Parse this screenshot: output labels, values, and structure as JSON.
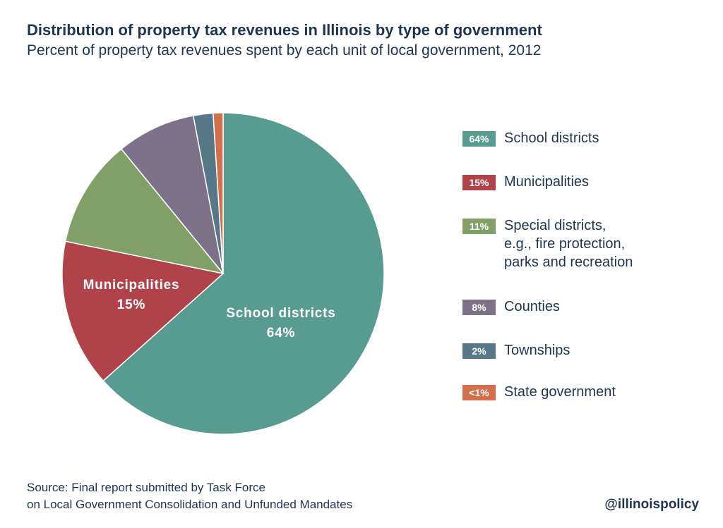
{
  "title": "Distribution of property tax revenues in Illinois by type of government",
  "subtitle": "Percent of property tax revenues spent by each unit of local government, 2012",
  "chart_data": {
    "type": "pie",
    "title": "Distribution of property tax revenues in Illinois by type of government",
    "subtitle": "Percent of property tax revenues spent by each unit of local government, 2012",
    "legend_position": "right",
    "start": "top, clockwise",
    "slices": [
      {
        "name": "School districts",
        "value": 64,
        "value_label": "64%",
        "color": "#589b90",
        "in_pie_label": "School districts"
      },
      {
        "name": "Municipalities",
        "value": 15,
        "value_label": "15%",
        "color": "#b0434a",
        "in_pie_label": "Municipalities"
      },
      {
        "name": "Special districts,\ne.g., fire protection,\nparks and recreation",
        "value": 11,
        "value_label": "11%",
        "color": "#80a068"
      },
      {
        "name": "Counties",
        "value": 8,
        "value_label": "8%",
        "color": "#7d7289"
      },
      {
        "name": "Townships",
        "value": 2,
        "value_label": "2%",
        "color": "#577888"
      },
      {
        "name": "State government",
        "value": 1,
        "value_label": "<1%",
        "color": "#d3704b"
      }
    ]
  },
  "source": "Source: Final report submitted by Task Force\non Local Government Consolidation and Unfunded Mandates",
  "handle": "@illinoispolicy"
}
